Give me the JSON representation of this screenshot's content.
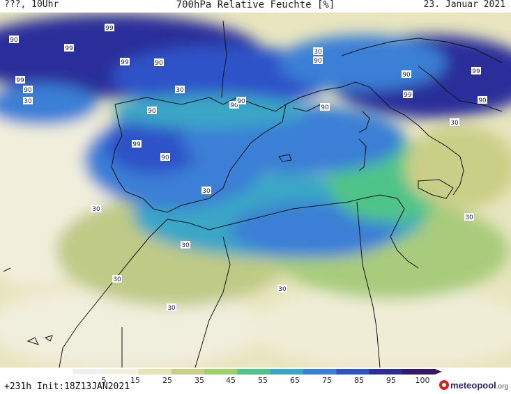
{
  "header": {
    "left": "???, 10Uhr",
    "title": "700hPa Relative Feuchte [%]",
    "date": "23. Januar 2021"
  },
  "footer": {
    "run_info": "+231h Init:18Z13JAN2021",
    "brand_name": "meteopool",
    "brand_tld": ".org"
  },
  "colorbar": {
    "ticks": [
      "5",
      "15",
      "25",
      "35",
      "45",
      "55",
      "65",
      "75",
      "85",
      "95",
      "100"
    ],
    "colors": [
      "#f0f0f0",
      "#f3f1d9",
      "#e6e3b4",
      "#c9cf86",
      "#9bd06a",
      "#4fc48a",
      "#3aa6c6",
      "#3b7fd6",
      "#2f52c8",
      "#2a2f9a",
      "#351868"
    ]
  },
  "map": {
    "contour_labels": [
      "99",
      "90",
      "99",
      "99",
      "90",
      "99",
      "90",
      "30",
      "90",
      "30",
      "90",
      "90",
      "99",
      "90",
      "90",
      "90",
      "99",
      "30",
      "90",
      "30",
      "99",
      "90",
      "30",
      "30",
      "30",
      "30",
      "30",
      "30",
      "30"
    ]
  }
}
